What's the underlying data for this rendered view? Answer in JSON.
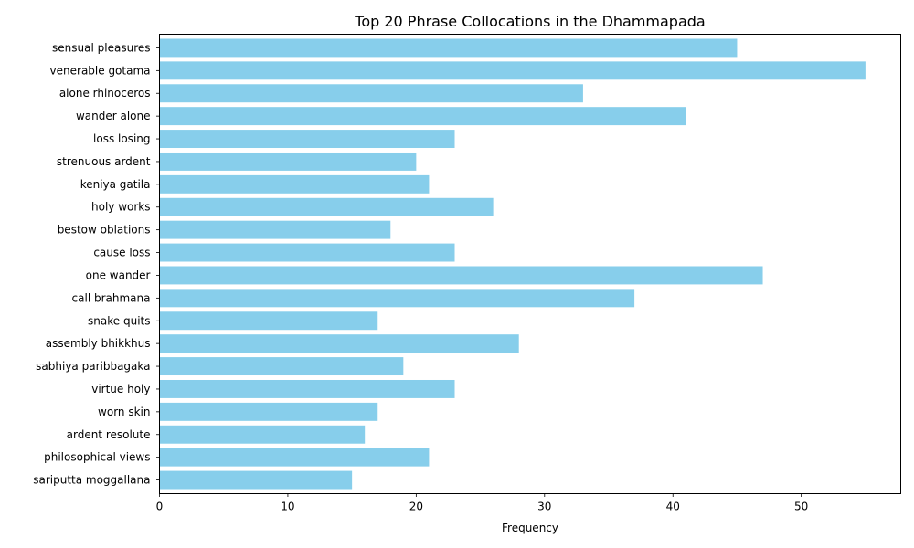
{
  "chart_data": {
    "type": "bar",
    "orientation": "horizontal",
    "title": "Top 20 Phrase Collocations in the Dhammapada",
    "xlabel": "Frequency",
    "ylabel": "",
    "categories": [
      "sensual pleasures",
      "venerable gotama",
      "alone rhinoceros",
      "wander alone",
      "loss losing",
      "strenuous ardent",
      "keniya gatila",
      "holy works",
      "bestow oblations",
      "cause loss",
      "one wander",
      "call brahmana",
      "snake quits",
      "assembly bhikkhus",
      "sabhiya paribbagaka",
      "virtue holy",
      "worn skin",
      "ardent resolute",
      "philosophical views",
      "sariputta moggallana"
    ],
    "values": [
      45,
      55,
      33,
      41,
      23,
      20,
      21,
      26,
      18,
      23,
      47,
      37,
      17,
      28,
      19,
      23,
      17,
      16,
      21,
      15
    ],
    "xlim": [
      0,
      57.75
    ],
    "xticks": [
      0,
      10,
      20,
      30,
      40,
      50
    ],
    "bar_color": "#87CEEB",
    "grid": false,
    "legend": "none"
  }
}
